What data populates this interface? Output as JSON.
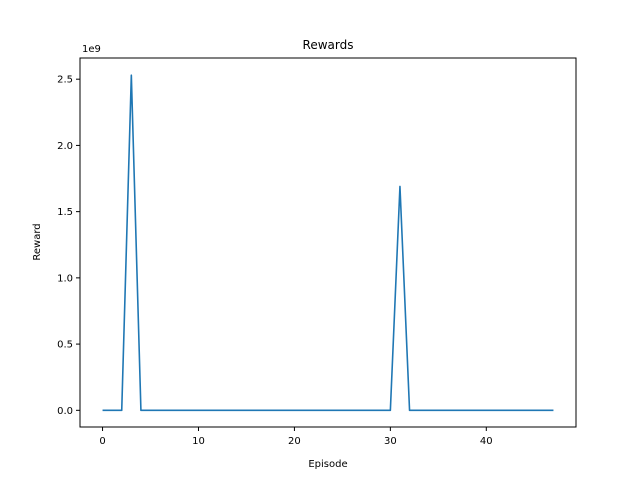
{
  "chart_data": {
    "type": "line",
    "title": "Rewards",
    "xlabel": "Episode",
    "ylabel": "Reward",
    "y_offset_label": "1e9",
    "xlim": [
      -2.35,
      49.35
    ],
    "ylim": [
      -0.126,
      2.66
    ],
    "x_ticks": [
      0,
      10,
      20,
      30,
      40
    ],
    "x_tick_labels": [
      "0",
      "10",
      "20",
      "30",
      "40"
    ],
    "y_ticks": [
      0.0,
      0.5,
      1.0,
      1.5,
      2.0,
      2.5
    ],
    "y_tick_labels": [
      "0.0",
      "0.5",
      "1.0",
      "1.5",
      "2.0",
      "2.5"
    ],
    "grid": false,
    "series": [
      {
        "color": "#1f77b4",
        "x": [
          0,
          1,
          2,
          3,
          4,
          5,
          6,
          7,
          8,
          9,
          10,
          11,
          12,
          13,
          14,
          15,
          16,
          17,
          18,
          19,
          20,
          21,
          22,
          23,
          24,
          25,
          26,
          27,
          28,
          29,
          30,
          31,
          32,
          33,
          34,
          35,
          36,
          37,
          38,
          39,
          40,
          41,
          42,
          43,
          44,
          45,
          46,
          47
        ],
        "y": [
          0,
          0,
          0,
          2.53,
          0,
          0,
          0,
          0,
          0,
          0,
          0,
          0,
          0,
          0,
          0,
          0,
          0,
          0,
          0,
          0,
          0,
          0,
          0,
          0,
          0,
          0,
          0,
          0,
          0,
          0,
          0,
          1.69,
          0,
          0,
          0,
          0,
          0,
          0,
          0,
          0,
          0,
          0,
          0,
          0,
          0,
          0,
          0,
          0
        ]
      }
    ]
  }
}
